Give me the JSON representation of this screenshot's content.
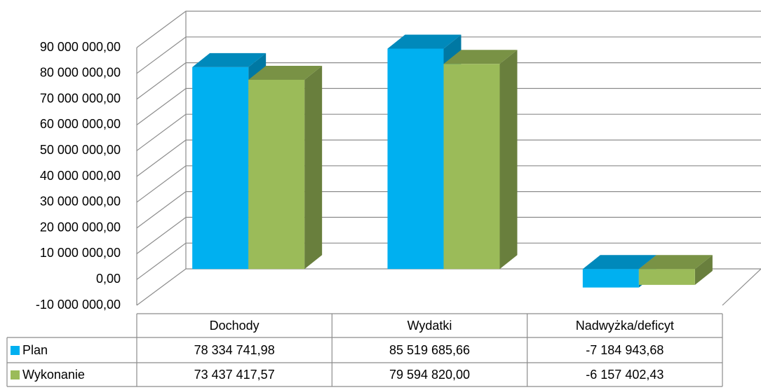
{
  "chart_data": {
    "type": "bar",
    "categories": [
      "Dochody",
      "Wydatki",
      "Nadwyżka/deficyt"
    ],
    "series": [
      {
        "name": "Plan",
        "color": "#00b0f0",
        "values": [
          78334741.98,
          85519685.66,
          -7184943.68
        ],
        "value_labels": [
          "78 334 741,98",
          "85 519 685,66",
          "-7 184 943,68"
        ]
      },
      {
        "name": "Wykonanie",
        "color": "#9bbb59",
        "values": [
          73437417.57,
          79594820.0,
          -6157402.43
        ],
        "value_labels": [
          "73 437 417,57",
          "79 594 820,00",
          "-6 157 402,43"
        ]
      }
    ],
    "ylim": [
      -10000000,
      90000000
    ],
    "yticks": [
      {
        "value": -10000000,
        "label": "-10 000 000,00"
      },
      {
        "value": 0,
        "label": "0,00"
      },
      {
        "value": 10000000,
        "label": "10 000 000,00"
      },
      {
        "value": 20000000,
        "label": "20 000 000,00"
      },
      {
        "value": 30000000,
        "label": "30 000 000,00"
      },
      {
        "value": 40000000,
        "label": "40 000 000,00"
      },
      {
        "value": 50000000,
        "label": "50 000 000,00"
      },
      {
        "value": 60000000,
        "label": "60 000 000,00"
      },
      {
        "value": 70000000,
        "label": "70 000 000,00"
      },
      {
        "value": 80000000,
        "label": "80 000 000,00"
      },
      {
        "value": 90000000,
        "label": "90 000 000,00"
      }
    ],
    "grid": true
  }
}
